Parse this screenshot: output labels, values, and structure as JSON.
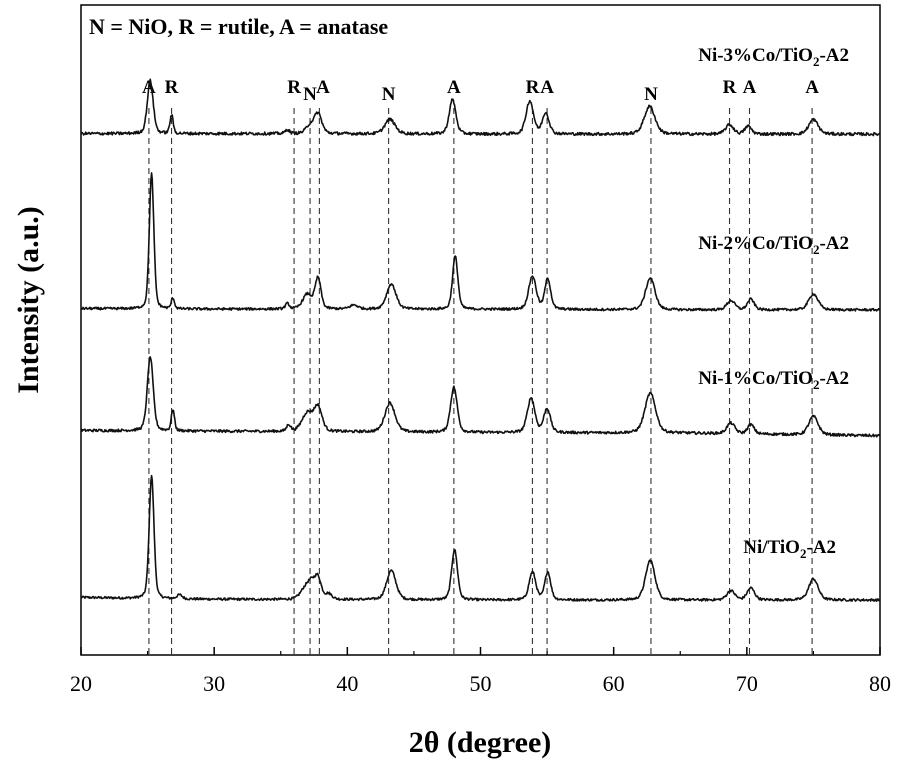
{
  "chart_data": {
    "type": "line",
    "xlabel": "2θ (degree)",
    "ylabel": "Intensity (a.u.)",
    "xlim": [
      20,
      80
    ],
    "x_ticks": [
      20,
      30,
      40,
      50,
      60,
      70,
      80
    ],
    "y_ticks_shown": false,
    "grid": false,
    "legend": "N = NiO, R = rutile, A = anatase",
    "legend_position": "top-left",
    "series": [
      {
        "name": "Ni/TiO2-A2",
        "label_main": "Ni/TiO",
        "label_sub": "2",
        "label_tail": "-A2",
        "offset": 0,
        "noise": 0.045,
        "baseline": [
          [
            20,
            0.4
          ],
          [
            26,
            0.34
          ],
          [
            35,
            0.32
          ],
          [
            50,
            0.3
          ],
          [
            65,
            0.3
          ],
          [
            80,
            0.3
          ]
        ],
        "peaks": [
          {
            "x": 25.3,
            "h": 4.65,
            "w": 0.18
          },
          {
            "x": 27.4,
            "h": 0.15,
            "w": 0.2
          },
          {
            "x": 36.8,
            "h": 0.35,
            "w": 0.35
          },
          {
            "x": 37.3,
            "h": 0.55,
            "w": 0.3
          },
          {
            "x": 37.8,
            "h": 0.75,
            "w": 0.25
          },
          {
            "x": 38.6,
            "h": 0.2,
            "w": 0.25
          },
          {
            "x": 43.3,
            "h": 1.1,
            "w": 0.35
          },
          {
            "x": 48.05,
            "h": 1.9,
            "w": 0.22
          },
          {
            "x": 53.9,
            "h": 1.05,
            "w": 0.25
          },
          {
            "x": 55.05,
            "h": 1.05,
            "w": 0.22
          },
          {
            "x": 62.75,
            "h": 1.5,
            "w": 0.35
          },
          {
            "x": 68.8,
            "h": 0.35,
            "w": 0.3
          },
          {
            "x": 70.3,
            "h": 0.45,
            "w": 0.28
          },
          {
            "x": 75.0,
            "h": 0.8,
            "w": 0.35
          }
        ]
      },
      {
        "name": "Ni-1%Co/TiO2-A2",
        "label_main": "Ni-1%Co/TiO",
        "label_sub": "2",
        "label_tail": "-A2",
        "offset": 6.3,
        "noise": 0.05,
        "baseline": [
          [
            20,
            0.4
          ],
          [
            26,
            0.38
          ],
          [
            35,
            0.36
          ],
          [
            50,
            0.32
          ],
          [
            65,
            0.3
          ],
          [
            80,
            0.2
          ]
        ],
        "peaks": [
          {
            "x": 25.2,
            "h": 2.8,
            "w": 0.22
          },
          {
            "x": 26.9,
            "h": 0.8,
            "w": 0.12
          },
          {
            "x": 35.6,
            "h": 0.25,
            "w": 0.15
          },
          {
            "x": 37.0,
            "h": 0.7,
            "w": 0.4
          },
          {
            "x": 37.8,
            "h": 0.9,
            "w": 0.3
          },
          {
            "x": 43.2,
            "h": 1.1,
            "w": 0.38
          },
          {
            "x": 48.0,
            "h": 1.7,
            "w": 0.25
          },
          {
            "x": 53.8,
            "h": 1.3,
            "w": 0.28
          },
          {
            "x": 55.0,
            "h": 0.9,
            "w": 0.25
          },
          {
            "x": 62.75,
            "h": 1.5,
            "w": 0.4
          },
          {
            "x": 68.8,
            "h": 0.4,
            "w": 0.3
          },
          {
            "x": 70.3,
            "h": 0.35,
            "w": 0.25
          },
          {
            "x": 75.0,
            "h": 0.7,
            "w": 0.35
          }
        ]
      },
      {
        "name": "Ni-2%Co/TiO2-A2",
        "label_main": "Ni-2%Co/TiO",
        "label_sub": "2",
        "label_tail": "-A2",
        "offset": 11.0,
        "noise": 0.045,
        "baseline": [
          [
            20,
            0.3
          ],
          [
            26,
            0.28
          ],
          [
            35,
            0.28
          ],
          [
            50,
            0.27
          ],
          [
            65,
            0.25
          ],
          [
            80,
            0.25
          ]
        ],
        "peaks": [
          {
            "x": 25.3,
            "h": 5.1,
            "w": 0.17
          },
          {
            "x": 26.9,
            "h": 0.4,
            "w": 0.12
          },
          {
            "x": 35.5,
            "h": 0.2,
            "w": 0.15
          },
          {
            "x": 37.0,
            "h": 0.55,
            "w": 0.35
          },
          {
            "x": 37.8,
            "h": 1.15,
            "w": 0.22
          },
          {
            "x": 40.5,
            "h": 0.15,
            "w": 0.3
          },
          {
            "x": 43.3,
            "h": 0.95,
            "w": 0.35
          },
          {
            "x": 48.1,
            "h": 2.0,
            "w": 0.2
          },
          {
            "x": 53.9,
            "h": 1.25,
            "w": 0.28
          },
          {
            "x": 55.05,
            "h": 1.15,
            "w": 0.22
          },
          {
            "x": 62.75,
            "h": 1.2,
            "w": 0.35
          },
          {
            "x": 68.8,
            "h": 0.35,
            "w": 0.3
          },
          {
            "x": 70.3,
            "h": 0.4,
            "w": 0.25
          },
          {
            "x": 75.0,
            "h": 0.6,
            "w": 0.35
          }
        ]
      },
      {
        "name": "Ni-3%Co/TiO2-A2",
        "label_main": "Ni-3%Co/TiO",
        "label_sub": "2",
        "label_tail": "-A2",
        "offset": 17.6,
        "noise": 0.055,
        "baseline": [
          [
            20,
            0.3
          ],
          [
            26,
            0.3
          ],
          [
            35,
            0.3
          ],
          [
            50,
            0.28
          ],
          [
            65,
            0.28
          ],
          [
            80,
            0.28
          ]
        ],
        "peaks": [
          {
            "x": 25.2,
            "h": 2.0,
            "w": 0.22
          },
          {
            "x": 26.8,
            "h": 0.7,
            "w": 0.12
          },
          {
            "x": 35.5,
            "h": 0.15,
            "w": 0.15
          },
          {
            "x": 37.2,
            "h": 0.3,
            "w": 0.3
          },
          {
            "x": 37.8,
            "h": 0.75,
            "w": 0.28
          },
          {
            "x": 43.2,
            "h": 0.55,
            "w": 0.38
          },
          {
            "x": 47.9,
            "h": 1.3,
            "w": 0.25
          },
          {
            "x": 53.7,
            "h": 1.25,
            "w": 0.28
          },
          {
            "x": 54.9,
            "h": 0.8,
            "w": 0.25
          },
          {
            "x": 62.7,
            "h": 1.05,
            "w": 0.4
          },
          {
            "x": 68.7,
            "h": 0.35,
            "w": 0.3
          },
          {
            "x": 70.1,
            "h": 0.3,
            "w": 0.25
          },
          {
            "x": 75.0,
            "h": 0.55,
            "w": 0.35
          }
        ]
      }
    ],
    "reference_lines": [
      {
        "x": 25.1,
        "letter": "A"
      },
      {
        "x": 26.8,
        "letter": "R"
      },
      {
        "x": 36.0,
        "letter": "R"
      },
      {
        "x": 37.2,
        "letter": "N"
      },
      {
        "x": 37.9,
        "letter": "A"
      },
      {
        "x": 43.1,
        "letter": "N"
      },
      {
        "x": 48.0,
        "letter": "A"
      },
      {
        "x": 53.9,
        "letter": "R"
      },
      {
        "x": 55.0,
        "letter": "A"
      },
      {
        "x": 62.8,
        "letter": "N"
      },
      {
        "x": 68.7,
        "letter": "R"
      },
      {
        "x": 70.2,
        "letter": "A"
      },
      {
        "x": 74.9,
        "letter": "A"
      }
    ]
  }
}
